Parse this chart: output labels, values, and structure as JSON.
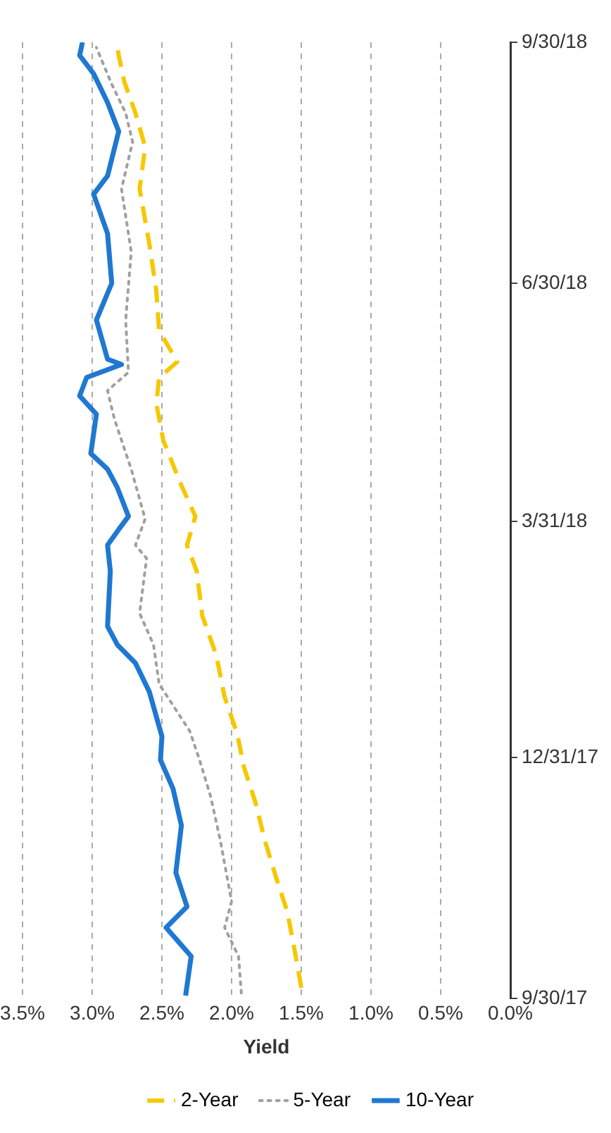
{
  "chart_data": {
    "type": "line",
    "orientation": "horizontal",
    "xlabel": "Yield",
    "ylim": [
      "2017-09-30",
      "2018-09-30"
    ],
    "yticks": [
      {
        "value": "2017-09-30",
        "label": "9/30/17"
      },
      {
        "value": "2017-12-31",
        "label": "12/31/17"
      },
      {
        "value": "2018-03-31",
        "label": "3/31/18"
      },
      {
        "value": "2018-06-30",
        "label": "6/30/18"
      },
      {
        "value": "2018-09-30",
        "label": "9/30/18"
      }
    ],
    "xlim": [
      3.5,
      0
    ],
    "xticks": [
      {
        "value": 0,
        "label": "0.0%"
      },
      {
        "value": 0.5,
        "label": "0.5%"
      },
      {
        "value": 1,
        "label": "1.0%"
      },
      {
        "value": 1.5,
        "label": "1.5%"
      },
      {
        "value": 2,
        "label": "2.0%"
      },
      {
        "value": 2.5,
        "label": "2.5%"
      },
      {
        "value": 3,
        "label": "3.0%"
      },
      {
        "value": 3.5,
        "label": "3.5%"
      }
    ],
    "grid": "x",
    "legend": "bottom",
    "marker": "none",
    "series": [
      {
        "name": "2-Year",
        "color": "#f5c800",
        "line_style": "dashed",
        "x": [
          "2017-10-04",
          "2017-10-19",
          "2017-11-02",
          "2017-11-15",
          "2017-11-29",
          "2017-12-14",
          "2017-12-27",
          "2018-01-09",
          "2018-01-23",
          "2018-02-08",
          "2018-02-23",
          "2018-03-12",
          "2018-03-22",
          "2018-04-02",
          "2018-04-15",
          "2018-05-01",
          "2018-05-15",
          "2018-05-25",
          "2018-05-31",
          "2018-06-12",
          "2018-06-27",
          "2018-07-15",
          "2018-08-05",
          "2018-08-21",
          "2018-09-03",
          "2018-09-15",
          "2018-09-25",
          "2018-09-29"
        ],
        "values": [
          1.5,
          1.55,
          1.6,
          1.68,
          1.76,
          1.83,
          1.91,
          1.96,
          2.05,
          2.11,
          2.21,
          2.25,
          2.32,
          2.26,
          2.37,
          2.49,
          2.54,
          2.52,
          2.39,
          2.52,
          2.54,
          2.59,
          2.66,
          2.62,
          2.69,
          2.77,
          2.81,
          2.82
        ]
      },
      {
        "name": "5-Year",
        "color": "#a0a0a0",
        "line_style": "dotted",
        "x": [
          "2017-10-02",
          "2017-10-16",
          "2017-10-27",
          "2017-11-06",
          "2017-11-29",
          "2017-12-16",
          "2017-12-30",
          "2018-01-10",
          "2018-01-28",
          "2018-02-12",
          "2018-02-24",
          "2018-03-17",
          "2018-03-22",
          "2018-04-01",
          "2018-04-20",
          "2018-05-09",
          "2018-05-20",
          "2018-05-27",
          "2018-06-16",
          "2018-07-12",
          "2018-08-05",
          "2018-08-23",
          "2018-09-03",
          "2018-09-14",
          "2018-09-28"
        ],
        "values": [
          1.93,
          1.95,
          2.05,
          2.0,
          2.08,
          2.15,
          2.23,
          2.3,
          2.52,
          2.56,
          2.66,
          2.61,
          2.69,
          2.62,
          2.72,
          2.84,
          2.89,
          2.74,
          2.76,
          2.72,
          2.79,
          2.71,
          2.76,
          2.86,
          2.97
        ]
      },
      {
        "name": "10-Year",
        "color": "#1f78d1",
        "line_style": "solid",
        "x": [
          "2017-10-01",
          "2017-10-16",
          "2017-10-27",
          "2017-11-04",
          "2017-11-17",
          "2017-12-05",
          "2017-12-19",
          "2017-12-30",
          "2018-01-08",
          "2018-01-25",
          "2018-02-05",
          "2018-02-12",
          "2018-02-19",
          "2018-03-12",
          "2018-03-22",
          "2018-03-28",
          "2018-04-02",
          "2018-04-13",
          "2018-04-20",
          "2018-04-26",
          "2018-05-11",
          "2018-05-18",
          "2018-05-25",
          "2018-05-30",
          "2018-06-01",
          "2018-06-16",
          "2018-06-30",
          "2018-07-19",
          "2018-08-03",
          "2018-08-10",
          "2018-08-27",
          "2018-09-07",
          "2018-09-18",
          "2018-09-25",
          "2018-09-30"
        ],
        "values": [
          2.33,
          2.29,
          2.47,
          2.32,
          2.4,
          2.36,
          2.42,
          2.51,
          2.5,
          2.59,
          2.69,
          2.82,
          2.89,
          2.87,
          2.89,
          2.81,
          2.74,
          2.82,
          2.89,
          3.01,
          2.97,
          3.09,
          3.04,
          2.79,
          2.89,
          2.97,
          2.86,
          2.89,
          2.99,
          2.89,
          2.81,
          2.89,
          2.99,
          3.09,
          3.07
        ]
      }
    ]
  }
}
